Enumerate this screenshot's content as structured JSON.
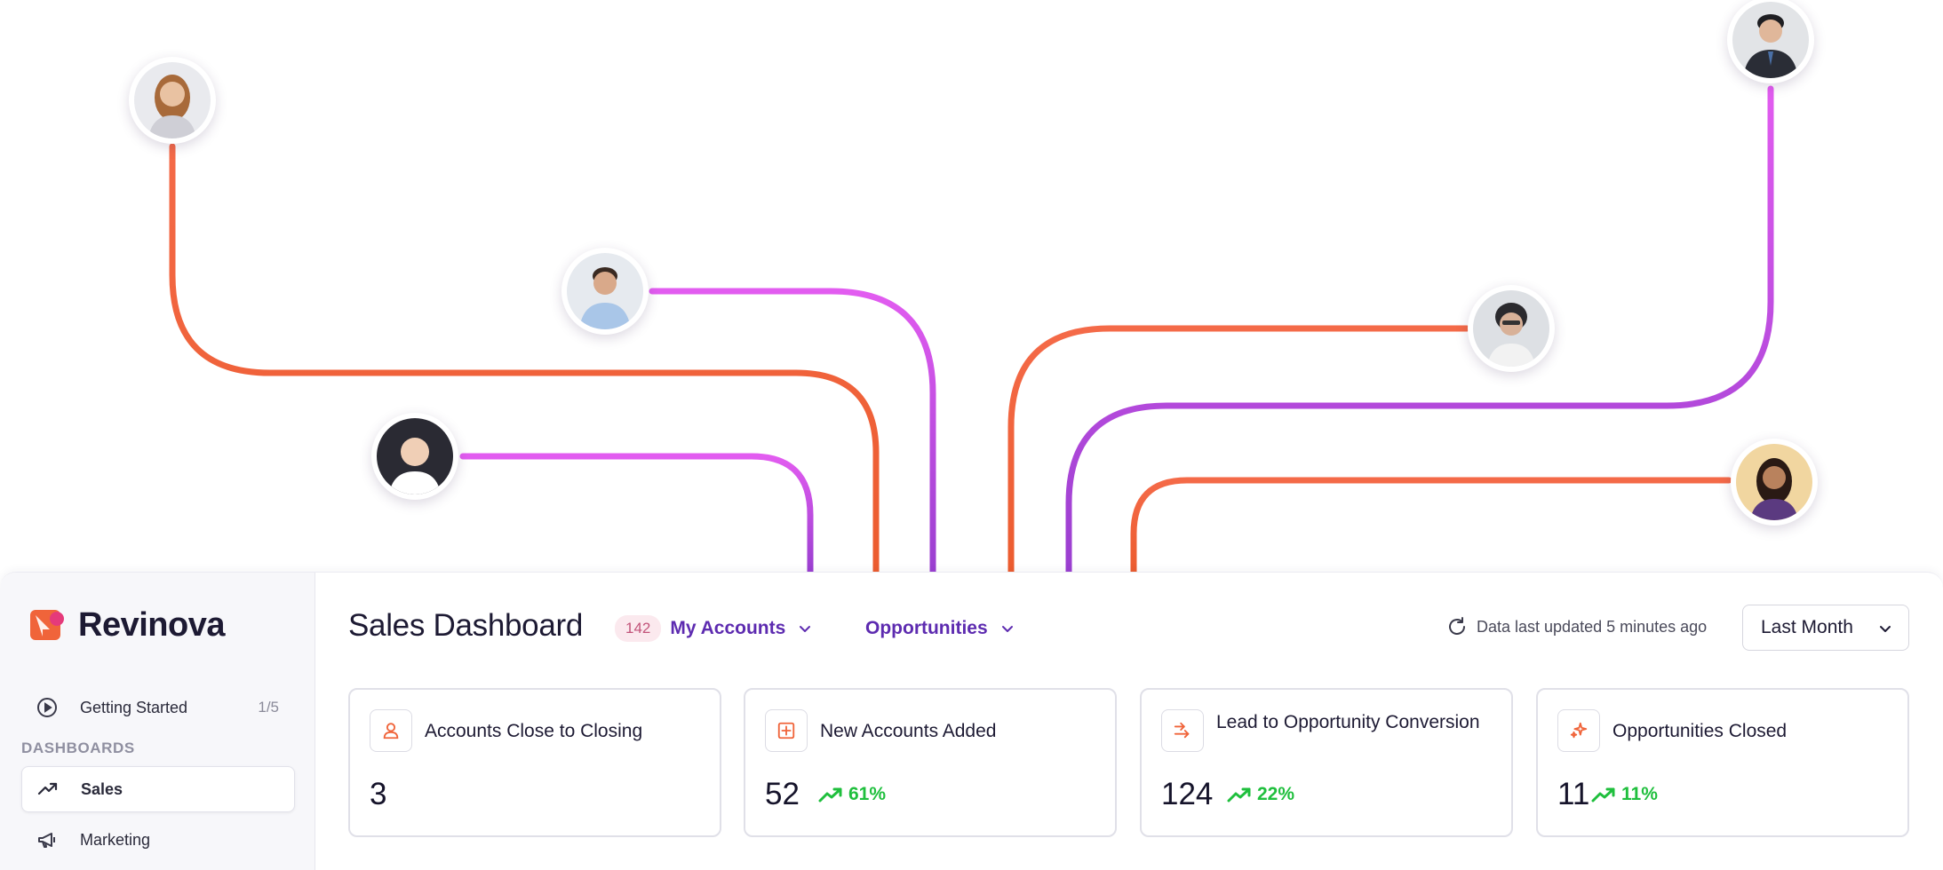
{
  "app": {
    "brand_name": "Revinova",
    "colors": {
      "accent": "#5d2bb0",
      "brand": "#f0643a",
      "trend_up": "#1fbf3d",
      "line_orange": "#f0643a",
      "line_purple": "#b044d8"
    }
  },
  "sidebar": {
    "getting_started": {
      "label": "Getting Started",
      "count": "1/5",
      "icon": "play-circle-icon"
    },
    "section_label": "DASHBOARDS",
    "items": [
      {
        "label": "Sales",
        "icon": "trending-up-icon",
        "active": true
      },
      {
        "label": "Marketing",
        "icon": "megaphone-icon",
        "active": false
      }
    ]
  },
  "header": {
    "title": "Sales Dashboard",
    "accounts_count": "142",
    "accounts_label": "My Accounts",
    "opportunities_label": "Opportunities",
    "updated_text": "Data last updated 5 minutes ago",
    "period": "Last Month"
  },
  "cards": [
    {
      "title": "Accounts Close to Closing",
      "value": "3",
      "trend": "",
      "icon": "user-icon"
    },
    {
      "title": "New Accounts Added",
      "value": "52",
      "trend": "61%",
      "icon": "plus-square-icon"
    },
    {
      "title": "Lead to Opportunity Conversion",
      "value": "124",
      "trend": "22%",
      "icon": "convert-arrow-icon"
    },
    {
      "title": "Opportunities Closed",
      "value": "11",
      "trend": "11%",
      "icon": "sparkles-icon"
    }
  ],
  "hero": {
    "avatars": [
      "avatar-woman-1",
      "avatar-man-1",
      "avatar-woman-2",
      "avatar-man-2",
      "avatar-woman-3",
      "avatar-woman-4"
    ]
  }
}
